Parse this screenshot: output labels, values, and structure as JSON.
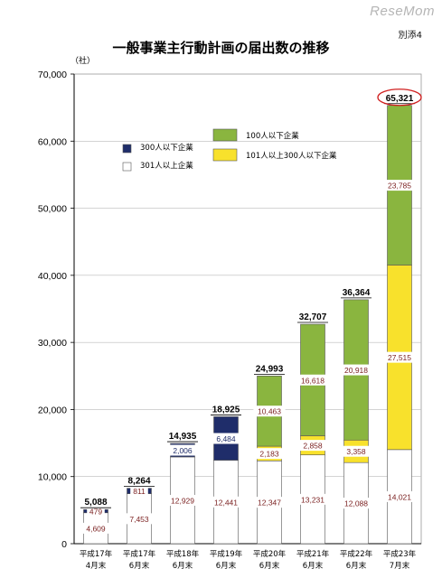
{
  "watermark": "ReseMom",
  "doc_tag": "別添4",
  "chart_data": {
    "type": "bar",
    "title": "一般事業主行動計画の届出数の推移",
    "ylabel": "（社）",
    "ylim": [
      0,
      70000
    ],
    "yticks": [
      "0",
      "10,000",
      "20,000",
      "30,000",
      "40,000",
      "50,000",
      "60,000",
      "70,000"
    ],
    "categories": [
      [
        "平成17年",
        "4月末"
      ],
      [
        "平成17年",
        "6月末"
      ],
      [
        "平成18年",
        "6月末"
      ],
      [
        "平成19年",
        "6月末"
      ],
      [
        "平成20年",
        "6月末"
      ],
      [
        "平成21年",
        "6月末"
      ],
      [
        "平成22年",
        "6月末"
      ],
      [
        "平成23年",
        "7月末"
      ]
    ],
    "totals": [
      "5,088",
      "8,264",
      "14,935",
      "18,925",
      "24,993",
      "32,707",
      "36,364",
      "65,321"
    ],
    "total_values": [
      5088,
      8264,
      14935,
      18925,
      24993,
      32707,
      36364,
      65321
    ],
    "highlight_index": 7,
    "legend": [
      {
        "key": "navy",
        "label": "300人以下企業"
      },
      {
        "key": "white",
        "label": "301人以上企業"
      },
      {
        "key": "green",
        "label": "100人以下企業"
      },
      {
        "key": "yellow",
        "label": "101人以上300人以下企業"
      }
    ],
    "colors": {
      "navy": "#1f2d6a",
      "white": "#ffffff",
      "green": "#8ab53f",
      "yellow": "#f8e12c",
      "label": "#7a1f1f"
    },
    "segments": [
      [
        {
          "color": "white",
          "value": 4609,
          "label": "4,609"
        },
        {
          "color": "navy",
          "value": 479,
          "label": "479"
        }
      ],
      [
        {
          "color": "white",
          "value": 7453,
          "label": "7,453"
        },
        {
          "color": "navy",
          "value": 811,
          "label": "811"
        }
      ],
      [
        {
          "color": "white",
          "value": 12929,
          "label": "12,929"
        },
        {
          "color": "navy",
          "value": 2006,
          "label": "2,006"
        }
      ],
      [
        {
          "color": "white",
          "value": 12441,
          "label": "12,441"
        },
        {
          "color": "navy",
          "value": 6484,
          "label": "6,484"
        }
      ],
      [
        {
          "color": "white",
          "value": 12347,
          "label": "12,347"
        },
        {
          "color": "yellow",
          "value": 2183,
          "label": "2,183"
        },
        {
          "color": "green",
          "value": 10463,
          "label": "10,463"
        }
      ],
      [
        {
          "color": "white",
          "value": 13231,
          "label": "13,231"
        },
        {
          "color": "yellow",
          "value": 2858,
          "label": "2,858"
        },
        {
          "color": "green",
          "value": 16618,
          "label": "16,618"
        }
      ],
      [
        {
          "color": "white",
          "value": 12088,
          "label": "12,088"
        },
        {
          "color": "yellow",
          "value": 3358,
          "label": "3,358"
        },
        {
          "color": "green",
          "value": 20918,
          "label": "20,918"
        }
      ],
      [
        {
          "color": "white",
          "value": 14021,
          "label": "14,021"
        },
        {
          "color": "yellow",
          "value": 27515,
          "label": "27,515"
        },
        {
          "color": "green",
          "value": 23785,
          "label": "23,785"
        }
      ]
    ]
  }
}
